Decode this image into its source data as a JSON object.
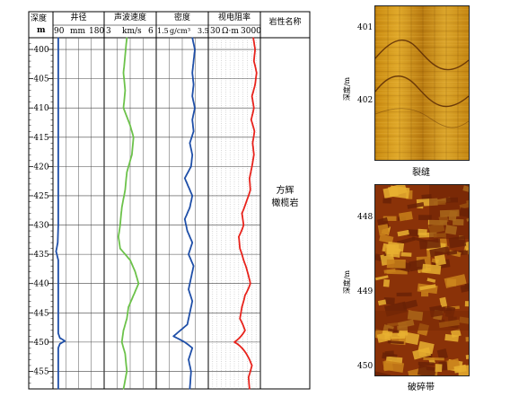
{
  "log": {
    "depth_header": {
      "line1": "深度",
      "line2": "m"
    },
    "tracks": [
      {
        "name": "井径",
        "scale_min": "90",
        "scale_unit": "mm",
        "scale_max": "180",
        "color": "#1f4fa8"
      },
      {
        "name": "声波速度",
        "scale_min": "3",
        "scale_unit": "km/s",
        "scale_max": "6",
        "color": "#6cc24a"
      },
      {
        "name": "密度",
        "scale_min": "1.5",
        "scale_unit": "g/cm³",
        "scale_max": "3.5",
        "color": "#1f4fa8"
      },
      {
        "name": "视电阻率",
        "scale_min": "30",
        "scale_unit": "Ω·m",
        "scale_max": "3000",
        "color": "#e8231c"
      }
    ],
    "lithology_header": "岩性名称",
    "lithology": {
      "line1": "方辉",
      "line2": "橄榄岩"
    },
    "depth_range": [
      398,
      458
    ],
    "depth_ticks": [
      "400",
      "405",
      "410",
      "415",
      "420",
      "425",
      "430",
      "435",
      "440",
      "445",
      "450",
      "455"
    ]
  },
  "images": [
    {
      "caption": "裂缝",
      "axis_label": "深度/m",
      "ticks": [
        "401",
        "402"
      ],
      "depth_range": [
        400.78,
        403.0
      ]
    },
    {
      "caption": "破碎带",
      "axis_label": "深度/m",
      "ticks": [
        "448",
        "449",
        "450"
      ],
      "depth_range": [
        447.6,
        450.1
      ]
    }
  ],
  "chart_data": {
    "type": "line",
    "ylabel": "深度",
    "y_unit": "m",
    "ylim": [
      398,
      458
    ],
    "y_inverted": true,
    "series": [
      {
        "name": "井径",
        "unit": "mm",
        "xlim": [
          90,
          180
        ],
        "depth": [
          398,
          430,
          433,
          434.5,
          436,
          448.5,
          449.3,
          449.8,
          450.3,
          451,
          458
        ],
        "values": [
          98,
          98,
          97,
          94,
          98,
          98,
          101,
          110,
          101,
          98,
          98
        ]
      },
      {
        "name": "声波速度",
        "unit": "km/s",
        "xlim": [
          3,
          6
        ],
        "depth": [
          398,
          401,
          404,
          407,
          410,
          413,
          415,
          418,
          421,
          424,
          427,
          430,
          432,
          434,
          436,
          438,
          440,
          442,
          444,
          446,
          448,
          450,
          452,
          455,
          458
        ],
        "values": [
          4.3,
          4.2,
          4.1,
          4.2,
          4.1,
          4.5,
          4.7,
          4.6,
          4.3,
          4.2,
          4.0,
          3.9,
          3.8,
          3.9,
          4.5,
          4.8,
          5.0,
          4.7,
          4.4,
          4.3,
          4.1,
          4.0,
          4.2,
          4.3,
          4.1
        ]
      },
      {
        "name": "密度",
        "unit": "g/cm³",
        "xlim": [
          1.5,
          3.5
        ],
        "depth": [
          398,
          400,
          402,
          404,
          406,
          408,
          410,
          412,
          414,
          416,
          418,
          420,
          422,
          423,
          425,
          427,
          429,
          431,
          433,
          435,
          437,
          439,
          441,
          443,
          445,
          447,
          449,
          450,
          451,
          453,
          455,
          458
        ],
        "values": [
          2.9,
          3.0,
          2.95,
          2.9,
          2.95,
          2.9,
          3.0,
          2.9,
          2.95,
          2.8,
          2.9,
          2.85,
          2.6,
          2.7,
          2.9,
          2.8,
          2.6,
          2.7,
          2.9,
          2.75,
          2.95,
          2.85,
          2.75,
          2.9,
          2.8,
          2.7,
          2.15,
          2.6,
          2.9,
          2.75,
          2.85,
          2.8
        ]
      },
      {
        "name": "视电阻率",
        "unit": "Ω·m",
        "xlim": [
          30,
          3000
        ],
        "x_scale": "log",
        "depth": [
          398,
          400,
          402,
          404,
          406,
          408,
          410,
          412,
          414,
          416,
          418,
          420,
          422,
          424,
          426,
          428,
          430,
          432,
          434,
          436,
          438,
          440,
          442,
          444,
          446,
          448,
          450,
          452,
          454,
          456,
          458
        ],
        "values": [
          1700,
          2000,
          1800,
          2300,
          2000,
          1500,
          1800,
          1400,
          1900,
          1600,
          1800,
          1500,
          1200,
          1300,
          900,
          600,
          700,
          450,
          500,
          700,
          1000,
          1300,
          800,
          600,
          500,
          800,
          300,
          900,
          1500,
          1100,
          1200
        ]
      }
    ]
  }
}
